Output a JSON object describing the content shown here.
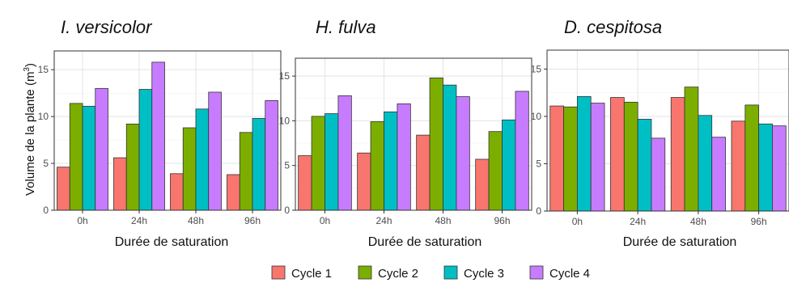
{
  "chart_data": {
    "type": "bar",
    "ylabel_main": "Volume de la plante (m",
    "ylabel_sup": "3",
    "ylabel_close": ")",
    "ylim": [
      0,
      17
    ],
    "yticks": [
      "0",
      "5",
      "10",
      "15"
    ],
    "grid": true,
    "legend_position": "bottom",
    "series": [
      {
        "name": "Cycle 1",
        "color": "#F8766D"
      },
      {
        "name": "Cycle 2",
        "color": "#7CAE00"
      },
      {
        "name": "Cycle 3",
        "color": "#00BFC4"
      },
      {
        "name": "Cycle 4",
        "color": "#C77CFF"
      }
    ],
    "panels": [
      {
        "title": "I. versicolor",
        "xlabel": "Durée de saturation",
        "categories": [
          "0h",
          "24h",
          "48h",
          "96h"
        ],
        "values": [
          [
            4.6,
            11.4,
            11.1,
            13.0
          ],
          [
            5.6,
            9.2,
            12.9,
            15.8
          ],
          [
            3.9,
            8.8,
            10.8,
            12.6
          ],
          [
            3.8,
            8.3,
            9.8,
            11.7
          ]
        ]
      },
      {
        "title": "H. fulva",
        "xlabel": "Durée de saturation",
        "categories": [
          "0h",
          "24h",
          "48h",
          "96h"
        ],
        "values": [
          [
            6.1,
            10.5,
            10.8,
            12.8
          ],
          [
            6.4,
            9.9,
            11.0,
            11.9
          ],
          [
            8.4,
            14.8,
            14.0,
            12.7
          ],
          [
            5.7,
            8.8,
            10.1,
            13.3
          ]
        ]
      },
      {
        "title": "D. cespitosa",
        "xlabel": "Durée de saturation",
        "categories": [
          "0h",
          "24h",
          "48h",
          "96h"
        ],
        "values": [
          [
            11.1,
            11.0,
            12.1,
            11.4
          ],
          [
            12.0,
            11.5,
            9.7,
            7.7
          ],
          [
            12.0,
            13.1,
            10.1,
            7.8
          ],
          [
            9.5,
            11.2,
            9.2,
            9.0
          ]
        ]
      }
    ]
  }
}
